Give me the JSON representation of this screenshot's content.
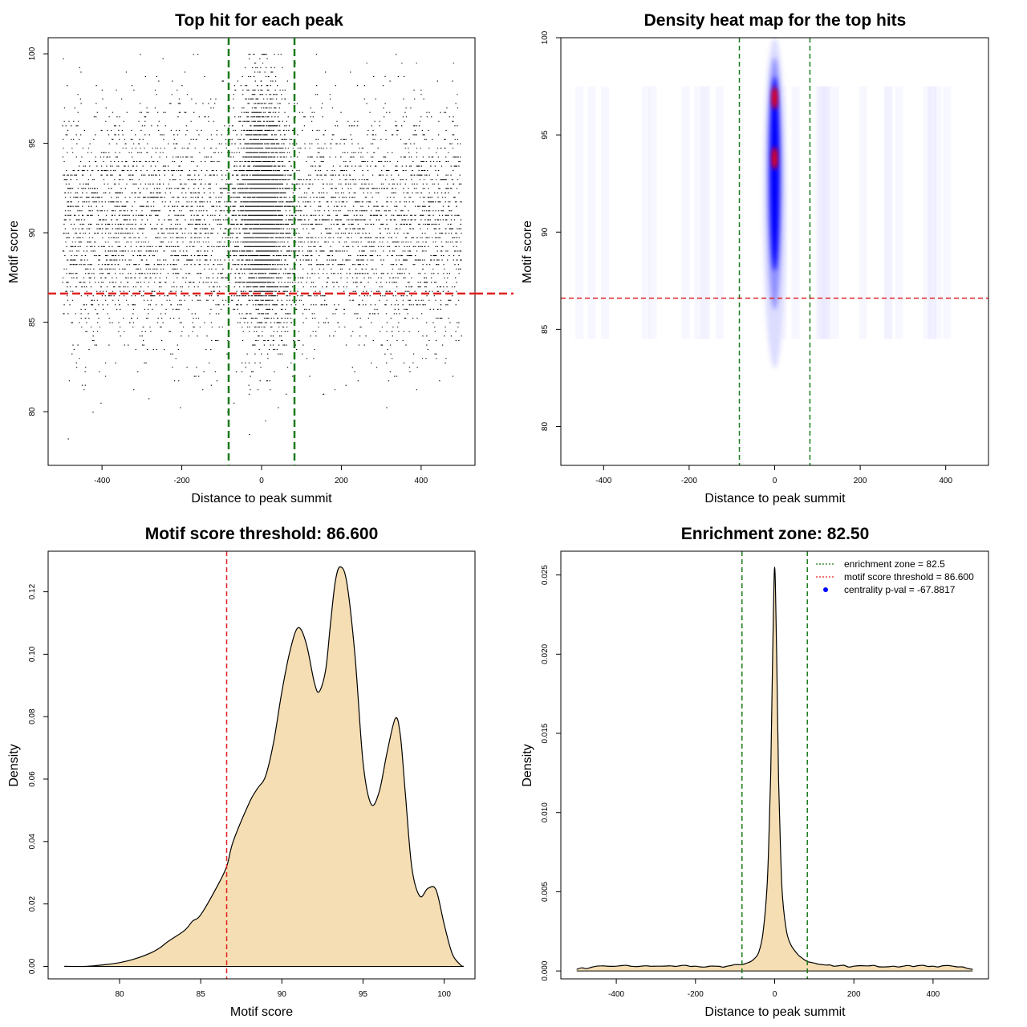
{
  "colors": {
    "threshold_line": "#e02020",
    "zone_line": "#1a7a1a",
    "density_fill": "#f5deb3",
    "points": "#000000",
    "heat_low": "#ffffff",
    "heat_mid": "#0000ff",
    "heat_high": "#ff0000"
  },
  "chart_data": [
    {
      "id": "scatter",
      "type": "scatter",
      "title": "Top hit for each peak",
      "xlabel": "Distance to peak summit",
      "ylabel": "Motif score",
      "xlim": [
        -535,
        535
      ],
      "ylim": [
        77,
        100.9
      ],
      "x_ticks": [
        -400,
        -200,
        0,
        200,
        400
      ],
      "y_ticks": [
        80,
        85,
        90,
        95,
        100
      ],
      "threshold_y": 86.6,
      "zone_x": [
        -82.5,
        82.5
      ],
      "point_model": {
        "background_x_range": [
          -500,
          500
        ],
        "score_center": 91,
        "score_range": [
          78,
          100
        ],
        "central_cluster_x_sd": 30,
        "approx_point_count": 9000
      }
    },
    {
      "id": "heatmap",
      "type": "heatmap",
      "title": "Density heat map for the top hits",
      "xlabel": "Distance to peak summit",
      "ylabel": "Motif score",
      "xlim": [
        -500,
        500
      ],
      "ylim": [
        78,
        100
      ],
      "x_ticks": [
        -400,
        -200,
        0,
        200,
        400
      ],
      "y_ticks": [
        80,
        85,
        90,
        95,
        100
      ],
      "threshold_y": 86.6,
      "zone_x": [
        -82.5,
        82.5
      ],
      "hotspots": [
        {
          "x": 0,
          "y": 93.8,
          "level": "high"
        },
        {
          "x": 0,
          "y": 96.9,
          "level": "high"
        }
      ]
    },
    {
      "id": "score-density",
      "type": "area",
      "title": "Motif score threshold: 86.600",
      "xlabel": "Motif score",
      "ylabel": "Density",
      "xlim": [
        75.6,
        101.9
      ],
      "ylim": [
        -0.004,
        0.133
      ],
      "x_ticks": [
        80,
        85,
        90,
        95,
        100
      ],
      "y_ticks": [
        0.0,
        0.02,
        0.04,
        0.06,
        0.08,
        0.1,
        0.12
      ],
      "y_tick_labels": [
        "0.00",
        "0.02",
        "0.04",
        "0.06",
        "0.08",
        "0.10",
        "0.12"
      ],
      "threshold_x": 86.6,
      "x": [
        76.6,
        78,
        79,
        80,
        81,
        82,
        82.5,
        83,
        84,
        84.5,
        85,
        86,
        86.6,
        87,
        88,
        88.5,
        89,
        89.5,
        90,
        90.5,
        91,
        91.5,
        92,
        92.3,
        92.7,
        93,
        93.3,
        93.6,
        94,
        94.5,
        95,
        95.5,
        96,
        96.5,
        97,
        97.3,
        97.6,
        98,
        98.5,
        99,
        99.5,
        100,
        100.5,
        101,
        101.2
      ],
      "y": [
        0,
        0,
        0.0005,
        0.0012,
        0.0025,
        0.0045,
        0.006,
        0.008,
        0.0115,
        0.0145,
        0.0165,
        0.0255,
        0.032,
        0.04,
        0.0525,
        0.057,
        0.061,
        0.072,
        0.088,
        0.101,
        0.1085,
        0.1035,
        0.091,
        0.088,
        0.095,
        0.11,
        0.1235,
        0.128,
        0.123,
        0.1,
        0.0655,
        0.052,
        0.056,
        0.069,
        0.0795,
        0.074,
        0.056,
        0.032,
        0.0225,
        0.025,
        0.0245,
        0.0135,
        0.004,
        0.0005,
        0
      ]
    },
    {
      "id": "distance-density",
      "type": "area",
      "title": "Enrichment zone: 82.50",
      "xlabel": "Distance to peak summit",
      "ylabel": "Density",
      "xlim": [
        -540,
        540
      ],
      "ylim": [
        -0.0005,
        0.0265
      ],
      "x_ticks": [
        -400,
        -200,
        0,
        200,
        400
      ],
      "y_ticks": [
        0.0,
        0.005,
        0.01,
        0.015,
        0.02,
        0.025
      ],
      "y_tick_labels": [
        "0.000",
        "0.005",
        "0.010",
        "0.015",
        "0.020",
        "0.025"
      ],
      "zone_x": [
        -82.5,
        82.5
      ],
      "x": [
        -500,
        -450,
        -400,
        -300,
        -200,
        -150,
        -120,
        -100,
        -82,
        -70,
        -60,
        -50,
        -40,
        -30,
        -20,
        -15,
        -10,
        -5,
        0,
        5,
        10,
        15,
        20,
        30,
        40,
        50,
        60,
        70,
        82,
        100,
        120,
        150,
        200,
        300,
        400,
        450,
        500
      ],
      "y": [
        0.0001,
        0.0003,
        0.0003,
        0.0003,
        0.0003,
        0.0003,
        0.0003,
        0.0004,
        0.0004,
        0.0005,
        0.0006,
        0.0008,
        0.0012,
        0.0023,
        0.005,
        0.008,
        0.0125,
        0.02,
        0.0255,
        0.02,
        0.012,
        0.0075,
        0.0046,
        0.0025,
        0.0017,
        0.0013,
        0.001,
        0.0008,
        0.0006,
        0.0005,
        0.0004,
        0.0003,
        0.0003,
        0.0003,
        0.0003,
        0.0003,
        0.0001
      ],
      "legend": {
        "position": "top-right",
        "entries": [
          {
            "label": "enrichment zone = 82.5",
            "style": "dotted-green"
          },
          {
            "label": "motif score threshold = 86.600",
            "style": "dotted-red"
          },
          {
            "label": "centrality p-val = -67.8817",
            "style": "blue-dot"
          }
        ]
      }
    }
  ]
}
